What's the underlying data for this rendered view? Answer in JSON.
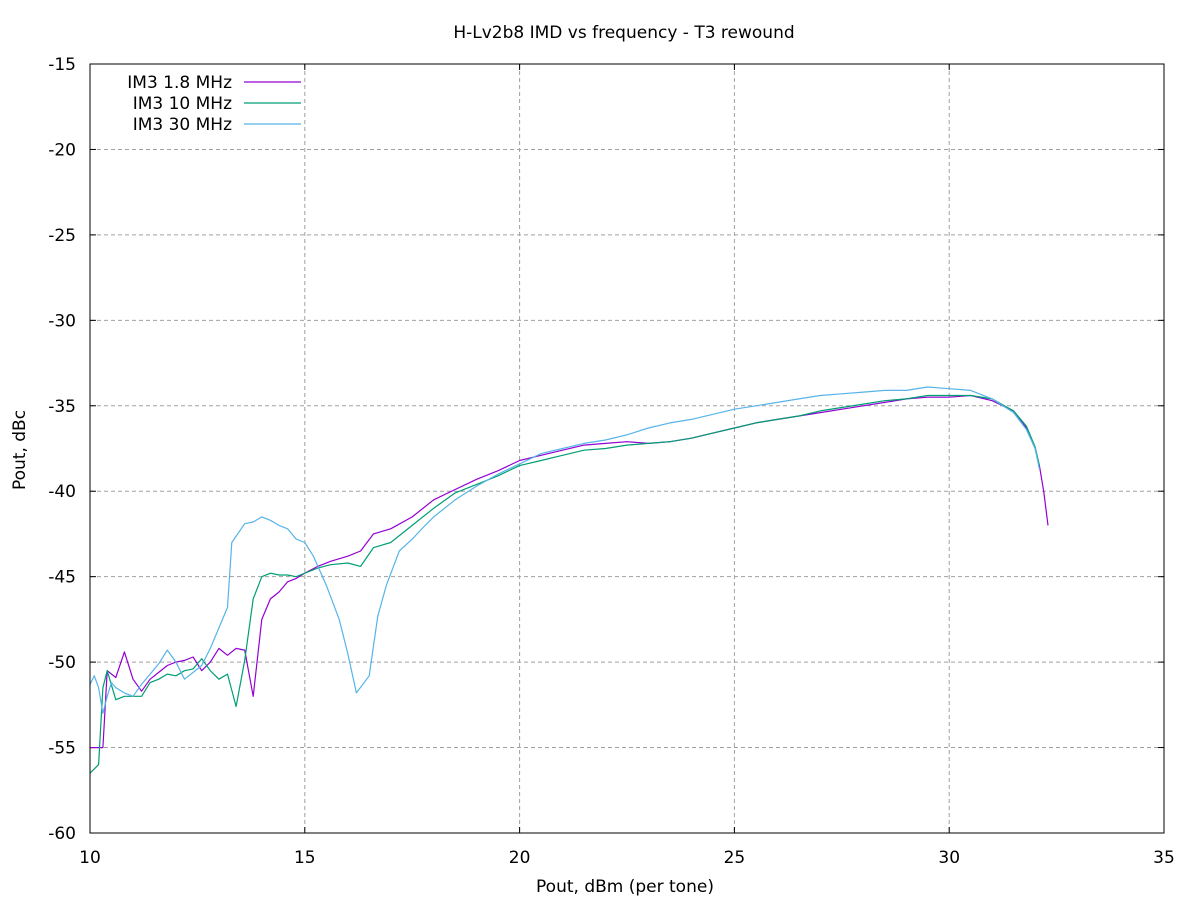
{
  "chart_data": {
    "type": "line",
    "title": "H-Lv2b8 IMD vs frequency - T3 rewound",
    "xlabel": "Pout, dBm (per tone)",
    "ylabel": "Pout, dBc",
    "xlim": [
      10,
      35
    ],
    "ylim": [
      -60,
      -15
    ],
    "xticks": [
      10,
      15,
      20,
      25,
      30,
      35
    ],
    "yticks": [
      -60,
      -55,
      -50,
      -45,
      -40,
      -35,
      -30,
      -25,
      -20,
      -15
    ],
    "grid": true,
    "legend_position": "top-left",
    "series": [
      {
        "name": "IM3 1.8 MHz",
        "color": "#9400d3",
        "points": [
          [
            10.0,
            -55.0
          ],
          [
            10.2,
            -55.0
          ],
          [
            10.3,
            -55.0
          ],
          [
            10.4,
            -50.5
          ],
          [
            10.6,
            -50.9
          ],
          [
            10.8,
            -49.4
          ],
          [
            11.0,
            -51.0
          ],
          [
            11.2,
            -51.7
          ],
          [
            11.4,
            -51.0
          ],
          [
            11.6,
            -50.6
          ],
          [
            11.8,
            -50.2
          ],
          [
            12.0,
            -50.0
          ],
          [
            12.2,
            -49.9
          ],
          [
            12.4,
            -49.7
          ],
          [
            12.6,
            -50.5
          ],
          [
            12.8,
            -50.0
          ],
          [
            13.0,
            -49.2
          ],
          [
            13.2,
            -49.6
          ],
          [
            13.4,
            -49.2
          ],
          [
            13.6,
            -49.3
          ],
          [
            13.8,
            -52.0
          ],
          [
            14.0,
            -47.5
          ],
          [
            14.2,
            -46.3
          ],
          [
            14.4,
            -45.9
          ],
          [
            14.6,
            -45.3
          ],
          [
            14.8,
            -45.1
          ],
          [
            15.0,
            -44.8
          ],
          [
            15.3,
            -44.4
          ],
          [
            15.6,
            -44.1
          ],
          [
            16.0,
            -43.8
          ],
          [
            16.3,
            -43.5
          ],
          [
            16.6,
            -42.5
          ],
          [
            17.0,
            -42.2
          ],
          [
            17.5,
            -41.5
          ],
          [
            18.0,
            -40.5
          ],
          [
            18.5,
            -39.9
          ],
          [
            19.0,
            -39.3
          ],
          [
            19.5,
            -38.8
          ],
          [
            20.0,
            -38.2
          ],
          [
            20.5,
            -37.9
          ],
          [
            21.0,
            -37.6
          ],
          [
            21.5,
            -37.3
          ],
          [
            22.0,
            -37.2
          ],
          [
            22.5,
            -37.1
          ],
          [
            23.0,
            -37.2
          ],
          [
            23.5,
            -37.1
          ],
          [
            24.0,
            -36.9
          ],
          [
            24.5,
            -36.6
          ],
          [
            25.0,
            -36.3
          ],
          [
            25.5,
            -36.0
          ],
          [
            26.0,
            -35.8
          ],
          [
            26.5,
            -35.6
          ],
          [
            27.0,
            -35.4
          ],
          [
            27.5,
            -35.2
          ],
          [
            28.0,
            -35.0
          ],
          [
            28.5,
            -34.8
          ],
          [
            29.0,
            -34.6
          ],
          [
            29.5,
            -34.5
          ],
          [
            30.0,
            -34.5
          ],
          [
            30.5,
            -34.4
          ],
          [
            31.0,
            -34.7
          ],
          [
            31.5,
            -35.3
          ],
          [
            31.8,
            -36.3
          ],
          [
            32.0,
            -37.5
          ],
          [
            32.1,
            -38.5
          ],
          [
            32.2,
            -40.0
          ],
          [
            32.3,
            -42.0
          ]
        ]
      },
      {
        "name": "IM3 10 MHz",
        "color": "#009e73",
        "points": [
          [
            10.0,
            -56.5
          ],
          [
            10.2,
            -56.0
          ],
          [
            10.3,
            -51.5
          ],
          [
            10.4,
            -50.5
          ],
          [
            10.6,
            -52.2
          ],
          [
            10.8,
            -52.0
          ],
          [
            11.0,
            -52.0
          ],
          [
            11.2,
            -52.0
          ],
          [
            11.4,
            -51.2
          ],
          [
            11.6,
            -51.0
          ],
          [
            11.8,
            -50.7
          ],
          [
            12.0,
            -50.8
          ],
          [
            12.2,
            -50.5
          ],
          [
            12.4,
            -50.4
          ],
          [
            12.6,
            -49.8
          ],
          [
            12.8,
            -50.5
          ],
          [
            13.0,
            -51.0
          ],
          [
            13.2,
            -50.7
          ],
          [
            13.4,
            -52.6
          ],
          [
            13.6,
            -49.9
          ],
          [
            13.8,
            -46.3
          ],
          [
            14.0,
            -45.0
          ],
          [
            14.2,
            -44.8
          ],
          [
            14.4,
            -44.9
          ],
          [
            14.6,
            -44.9
          ],
          [
            14.8,
            -45.0
          ],
          [
            15.0,
            -44.8
          ],
          [
            15.3,
            -44.5
          ],
          [
            15.6,
            -44.3
          ],
          [
            16.0,
            -44.2
          ],
          [
            16.3,
            -44.4
          ],
          [
            16.6,
            -43.3
          ],
          [
            17.0,
            -43.0
          ],
          [
            17.5,
            -42.0
          ],
          [
            18.0,
            -41.0
          ],
          [
            18.5,
            -40.1
          ],
          [
            19.0,
            -39.6
          ],
          [
            19.5,
            -39.1
          ],
          [
            20.0,
            -38.5
          ],
          [
            20.5,
            -38.2
          ],
          [
            21.0,
            -37.9
          ],
          [
            21.5,
            -37.6
          ],
          [
            22.0,
            -37.5
          ],
          [
            22.5,
            -37.3
          ],
          [
            23.0,
            -37.2
          ],
          [
            23.5,
            -37.1
          ],
          [
            24.0,
            -36.9
          ],
          [
            24.5,
            -36.6
          ],
          [
            25.0,
            -36.3
          ],
          [
            25.5,
            -36.0
          ],
          [
            26.0,
            -35.8
          ],
          [
            26.5,
            -35.6
          ],
          [
            27.0,
            -35.3
          ],
          [
            27.5,
            -35.1
          ],
          [
            28.0,
            -34.9
          ],
          [
            28.5,
            -34.7
          ],
          [
            29.0,
            -34.6
          ],
          [
            29.5,
            -34.4
          ],
          [
            30.0,
            -34.4
          ],
          [
            30.5,
            -34.4
          ],
          [
            31.0,
            -34.6
          ],
          [
            31.5,
            -35.3
          ],
          [
            31.8,
            -36.2
          ],
          [
            32.0,
            -37.4
          ],
          [
            32.1,
            -38.5
          ]
        ]
      },
      {
        "name": "IM3 30 MHz",
        "color": "#56b4e9",
        "points": [
          [
            10.0,
            -51.3
          ],
          [
            10.1,
            -50.8
          ],
          [
            10.2,
            -51.5
          ],
          [
            10.3,
            -53.0
          ],
          [
            10.4,
            -52.0
          ],
          [
            10.5,
            -51.2
          ],
          [
            10.6,
            -51.5
          ],
          [
            10.8,
            -51.8
          ],
          [
            11.0,
            -52.0
          ],
          [
            11.2,
            -51.3
          ],
          [
            11.4,
            -50.7
          ],
          [
            11.6,
            -50.1
          ],
          [
            11.8,
            -49.3
          ],
          [
            12.0,
            -50.0
          ],
          [
            12.2,
            -51.0
          ],
          [
            12.4,
            -50.6
          ],
          [
            12.6,
            -50.2
          ],
          [
            12.8,
            -49.2
          ],
          [
            13.0,
            -48.0
          ],
          [
            13.2,
            -46.8
          ],
          [
            13.3,
            -43.0
          ],
          [
            13.6,
            -41.9
          ],
          [
            13.8,
            -41.8
          ],
          [
            14.0,
            -41.5
          ],
          [
            14.2,
            -41.7
          ],
          [
            14.4,
            -42.0
          ],
          [
            14.6,
            -42.2
          ],
          [
            14.8,
            -42.8
          ],
          [
            15.0,
            -43.0
          ],
          [
            15.2,
            -43.8
          ],
          [
            15.5,
            -45.5
          ],
          [
            15.8,
            -47.5
          ],
          [
            16.0,
            -49.5
          ],
          [
            16.2,
            -51.8
          ],
          [
            16.5,
            -50.8
          ],
          [
            16.7,
            -47.3
          ],
          [
            16.9,
            -45.5
          ],
          [
            17.2,
            -43.5
          ],
          [
            17.5,
            -42.8
          ],
          [
            17.8,
            -42.0
          ],
          [
            18.0,
            -41.5
          ],
          [
            18.5,
            -40.5
          ],
          [
            19.0,
            -39.7
          ],
          [
            19.5,
            -39.0
          ],
          [
            20.0,
            -38.4
          ],
          [
            20.5,
            -37.8
          ],
          [
            21.0,
            -37.5
          ],
          [
            21.5,
            -37.2
          ],
          [
            22.0,
            -37.0
          ],
          [
            22.5,
            -36.7
          ],
          [
            23.0,
            -36.3
          ],
          [
            23.5,
            -36.0
          ],
          [
            24.0,
            -35.8
          ],
          [
            24.5,
            -35.5
          ],
          [
            25.0,
            -35.2
          ],
          [
            25.5,
            -35.0
          ],
          [
            26.0,
            -34.8
          ],
          [
            26.5,
            -34.6
          ],
          [
            27.0,
            -34.4
          ],
          [
            27.5,
            -34.3
          ],
          [
            28.0,
            -34.2
          ],
          [
            28.5,
            -34.1
          ],
          [
            29.0,
            -34.1
          ],
          [
            29.5,
            -33.9
          ],
          [
            30.0,
            -34.0
          ],
          [
            30.5,
            -34.1
          ],
          [
            31.0,
            -34.6
          ],
          [
            31.5,
            -35.4
          ],
          [
            31.8,
            -36.4
          ],
          [
            32.0,
            -37.5
          ],
          [
            32.1,
            -38.7
          ]
        ]
      }
    ]
  }
}
